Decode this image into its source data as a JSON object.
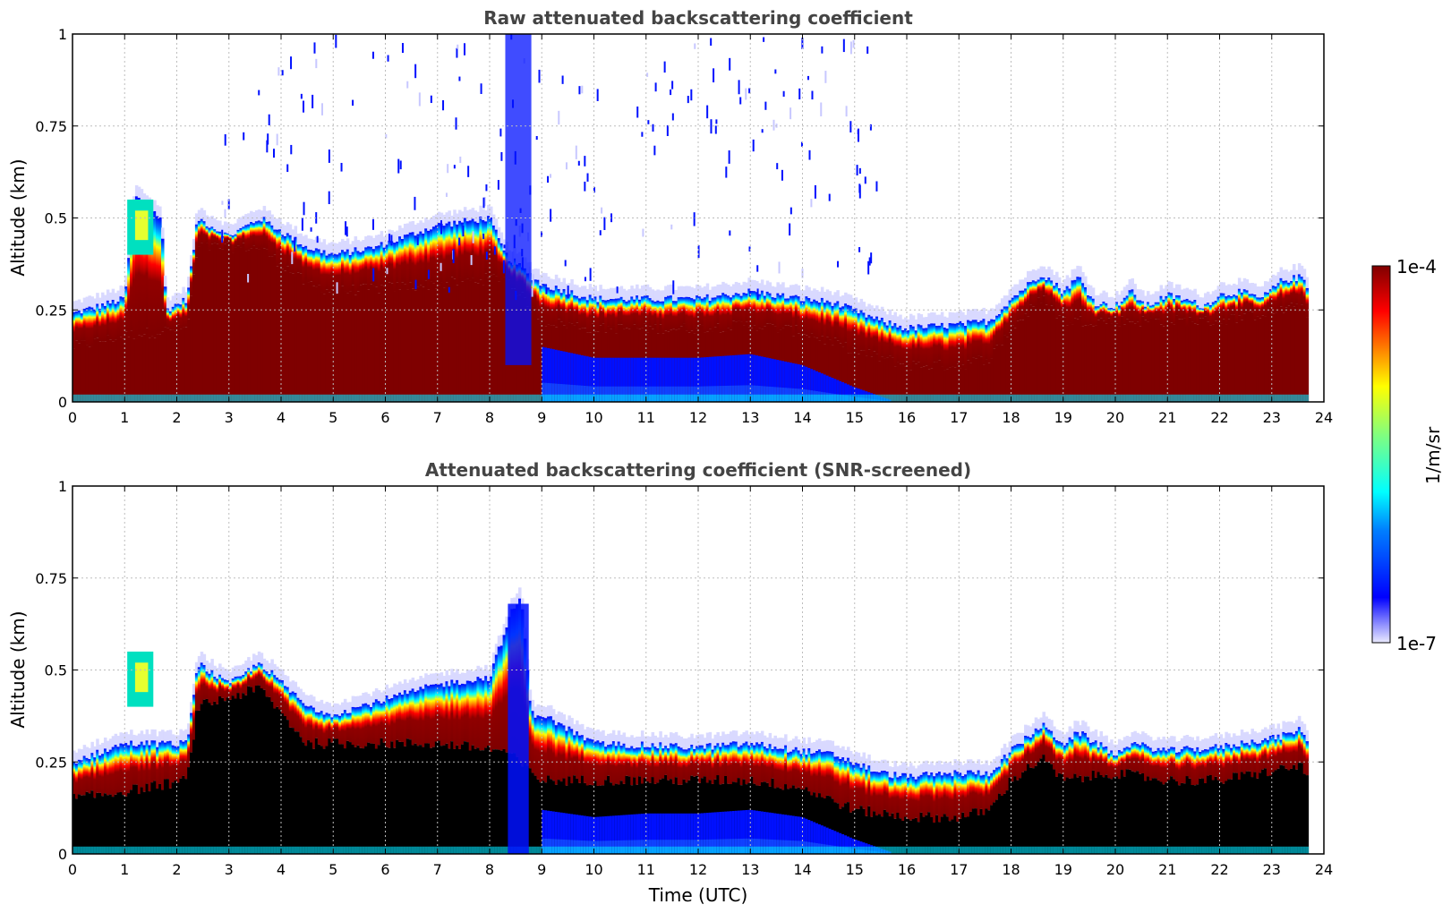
{
  "chart_data": [
    {
      "type": "heatmap",
      "title": "Raw attenuated backscattering coefficient",
      "ylabel": "Altitude (km)",
      "xlim": [
        0,
        24
      ],
      "ylim": [
        0,
        1
      ],
      "x_ticks": [
        "0",
        "1",
        "2",
        "3",
        "4",
        "5",
        "6",
        "7",
        "8",
        "9",
        "10",
        "11",
        "12",
        "13",
        "14",
        "15",
        "16",
        "17",
        "18",
        "19",
        "20",
        "21",
        "22",
        "23",
        "24"
      ],
      "y_ticks": [
        "0",
        "0.25",
        "0.5",
        "0.75",
        "1"
      ],
      "grid": true,
      "layer_top_km": [
        [
          0.0,
          0.24
        ],
        [
          1.0,
          0.28
        ],
        [
          1.2,
          0.56
        ],
        [
          1.7,
          0.5
        ],
        [
          1.8,
          0.25
        ],
        [
          2.2,
          0.28
        ],
        [
          2.4,
          0.5
        ],
        [
          3.0,
          0.45
        ],
        [
          3.6,
          0.5
        ],
        [
          4.5,
          0.42
        ],
        [
          5.0,
          0.4
        ],
        [
          5.8,
          0.42
        ],
        [
          7.0,
          0.48
        ],
        [
          8.0,
          0.5
        ],
        [
          8.3,
          0.4
        ],
        [
          9.0,
          0.32
        ],
        [
          10.0,
          0.28
        ],
        [
          11.0,
          0.28
        ],
        [
          12.0,
          0.28
        ],
        [
          13.0,
          0.3
        ],
        [
          14.0,
          0.28
        ],
        [
          14.6,
          0.27
        ],
        [
          15.5,
          0.22
        ],
        [
          16.0,
          0.2
        ],
        [
          17.0,
          0.21
        ],
        [
          17.6,
          0.22
        ],
        [
          18.0,
          0.28
        ],
        [
          18.6,
          0.35
        ],
        [
          19.0,
          0.3
        ],
        [
          19.3,
          0.34
        ],
        [
          19.6,
          0.27
        ],
        [
          20.0,
          0.26
        ],
        [
          20.3,
          0.3
        ],
        [
          20.6,
          0.26
        ],
        [
          21.0,
          0.29
        ],
        [
          21.3,
          0.28
        ],
        [
          21.7,
          0.26
        ],
        [
          22.0,
          0.29
        ],
        [
          22.4,
          0.3
        ],
        [
          22.8,
          0.28
        ],
        [
          23.2,
          0.33
        ],
        [
          23.6,
          0.34
        ],
        [
          23.7,
          0.3
        ]
      ],
      "dense_layer_top_km": [
        [
          0.0,
          0.15
        ],
        [
          1.0,
          0.18
        ],
        [
          2.2,
          0.2
        ],
        [
          2.4,
          0.42
        ],
        [
          3.6,
          0.42
        ],
        [
          4.5,
          0.32
        ],
        [
          5.0,
          0.3
        ],
        [
          7.0,
          0.32
        ],
        [
          8.3,
          0.34
        ],
        [
          9.0,
          0.22
        ],
        [
          10.0,
          0.2
        ],
        [
          12.0,
          0.2
        ],
        [
          13.0,
          0.21
        ],
        [
          14.0,
          0.19
        ],
        [
          15.0,
          0.14
        ],
        [
          16.0,
          0.1
        ],
        [
          17.0,
          0.1
        ],
        [
          17.6,
          0.12
        ],
        [
          18.0,
          0.2
        ],
        [
          18.6,
          0.28
        ],
        [
          19.0,
          0.22
        ],
        [
          20.0,
          0.22
        ],
        [
          21.0,
          0.22
        ],
        [
          22.0,
          0.22
        ],
        [
          23.6,
          0.26
        ],
        [
          23.7,
          0.22
        ]
      ],
      "lower_blue_top_km": [
        [
          9.0,
          0.15
        ],
        [
          10.0,
          0.12
        ],
        [
          11.0,
          0.12
        ],
        [
          12.0,
          0.12
        ],
        [
          13.0,
          0.13
        ],
        [
          14.0,
          0.1
        ],
        [
          15.0,
          0.04
        ],
        [
          15.8,
          0.0
        ]
      ],
      "data_end_utc": 23.7
    },
    {
      "type": "heatmap",
      "title": "Attenuated backscattering coefficient (SNR-screened)",
      "xlabel": "Time (UTC)",
      "ylabel": "Altitude (km)",
      "xlim": [
        0,
        24
      ],
      "ylim": [
        0,
        1
      ],
      "x_ticks": [
        "0",
        "1",
        "2",
        "3",
        "4",
        "5",
        "6",
        "7",
        "8",
        "9",
        "10",
        "11",
        "12",
        "13",
        "14",
        "15",
        "16",
        "17",
        "18",
        "19",
        "20",
        "21",
        "22",
        "23",
        "24"
      ],
      "y_ticks": [
        "0",
        "0.25",
        "0.5",
        "0.75",
        "1"
      ],
      "grid": true,
      "layer_top_km": [
        [
          0.0,
          0.25
        ],
        [
          1.0,
          0.3
        ],
        [
          2.2,
          0.3
        ],
        [
          2.4,
          0.52
        ],
        [
          3.0,
          0.46
        ],
        [
          3.6,
          0.52
        ],
        [
          4.5,
          0.4
        ],
        [
          5.0,
          0.38
        ],
        [
          6.0,
          0.42
        ],
        [
          7.0,
          0.46
        ],
        [
          8.0,
          0.48
        ],
        [
          8.4,
          0.65
        ],
        [
          8.6,
          0.7
        ],
        [
          8.8,
          0.38
        ],
        [
          9.0,
          0.38
        ],
        [
          10.0,
          0.3
        ],
        [
          12.0,
          0.29
        ],
        [
          13.0,
          0.3
        ],
        [
          14.0,
          0.28
        ],
        [
          14.6,
          0.27
        ],
        [
          15.5,
          0.22
        ],
        [
          16.0,
          0.21
        ],
        [
          17.0,
          0.22
        ],
        [
          17.6,
          0.22
        ],
        [
          18.0,
          0.28
        ],
        [
          18.6,
          0.35
        ],
        [
          19.0,
          0.3
        ],
        [
          19.3,
          0.33
        ],
        [
          20.0,
          0.27
        ],
        [
          20.3,
          0.3
        ],
        [
          21.0,
          0.28
        ],
        [
          22.0,
          0.29
        ],
        [
          23.2,
          0.32
        ],
        [
          23.6,
          0.34
        ],
        [
          23.7,
          0.3
        ]
      ],
      "dense_layer_top_km": [
        [
          0.0,
          0.15
        ],
        [
          1.0,
          0.17
        ],
        [
          2.2,
          0.2
        ],
        [
          2.4,
          0.4
        ],
        [
          3.6,
          0.45
        ],
        [
          4.5,
          0.3
        ],
        [
          5.0,
          0.3
        ],
        [
          7.0,
          0.3
        ],
        [
          8.3,
          0.28
        ],
        [
          9.0,
          0.2
        ],
        [
          10.0,
          0.2
        ],
        [
          12.0,
          0.2
        ],
        [
          13.0,
          0.2
        ],
        [
          14.0,
          0.18
        ],
        [
          15.0,
          0.12
        ],
        [
          16.0,
          0.1
        ],
        [
          17.0,
          0.1
        ],
        [
          17.6,
          0.12
        ],
        [
          18.0,
          0.2
        ],
        [
          18.6,
          0.26
        ],
        [
          19.0,
          0.2
        ],
        [
          20.0,
          0.22
        ],
        [
          21.0,
          0.2
        ],
        [
          22.0,
          0.2
        ],
        [
          23.6,
          0.24
        ],
        [
          23.7,
          0.2
        ]
      ],
      "lower_blue_top_km": [
        [
          9.0,
          0.12
        ],
        [
          10.0,
          0.1
        ],
        [
          11.0,
          0.11
        ],
        [
          12.0,
          0.11
        ],
        [
          13.0,
          0.12
        ],
        [
          14.0,
          0.1
        ],
        [
          15.0,
          0.04
        ],
        [
          15.8,
          0.0
        ]
      ],
      "data_end_utc": 23.7
    }
  ],
  "colorbar": {
    "label": "1/m/sr",
    "max_label": "1e-4",
    "min_label": "1e-7",
    "colormap": "jet",
    "scale": "log",
    "range": [
      1e-07,
      0.0001
    ]
  },
  "colors": {
    "dark_red": "#7f0000",
    "red": "#ff1a00",
    "yellow": "#ffff00",
    "cyan": "#00e5ff",
    "blue": "#0010ff",
    "pale_blue": "#c8c8ff",
    "screened_core": "#000000"
  }
}
